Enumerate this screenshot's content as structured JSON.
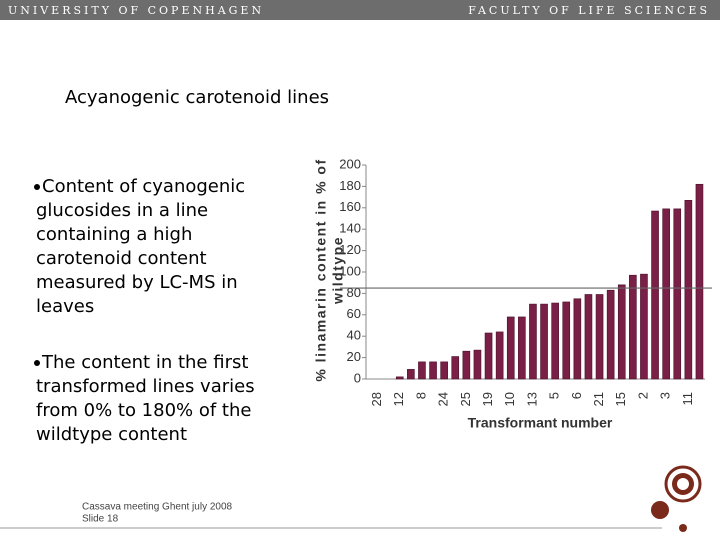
{
  "header": {
    "left": "UNIVERSITY OF COPENHAGEN",
    "right": "FACULTY OF LIFE SCIENCES"
  },
  "title": "Acyanogenic carotenoid lines",
  "bullets": [
    {
      "lines": [
        "Content of cyanogenic",
        "glucosides in a line",
        "containing a high",
        "carotenoid content",
        "measured by LC-MS in",
        "leaves"
      ]
    },
    {
      "lines": [
        "The content in the first",
        "transformed lines varies",
        "from 0% to 180% of the",
        "wildtype content"
      ]
    }
  ],
  "footer": {
    "lines": [
      "Cassava meeting Ghent july 2008",
      "Slide 18"
    ]
  },
  "chart_data": {
    "type": "bar",
    "ylabel": [
      "% linamarin content in % of",
      "wildtype"
    ],
    "xlabel": "Transformant number",
    "categories": [
      "28",
      null,
      "12",
      null,
      "8",
      null,
      "24",
      null,
      "25",
      null,
      "19",
      null,
      "10",
      null,
      "13",
      null,
      "5",
      null,
      "6",
      null,
      "21",
      null,
      "15",
      null,
      "2",
      null,
      "3",
      null,
      "11",
      null
    ],
    "values": [
      0,
      0,
      2,
      9,
      16,
      16,
      16,
      21,
      26,
      27,
      43,
      44,
      58,
      58,
      70,
      70,
      71,
      72,
      75,
      79,
      79,
      83,
      88,
      97,
      98,
      157,
      159,
      159,
      167,
      182
    ],
    "color": "#7a1f45",
    "reference_line": 85,
    "ylim": [
      0,
      200
    ],
    "yticks": [
      0,
      20,
      40,
      60,
      80,
      100,
      120,
      140,
      160,
      180,
      200
    ]
  }
}
